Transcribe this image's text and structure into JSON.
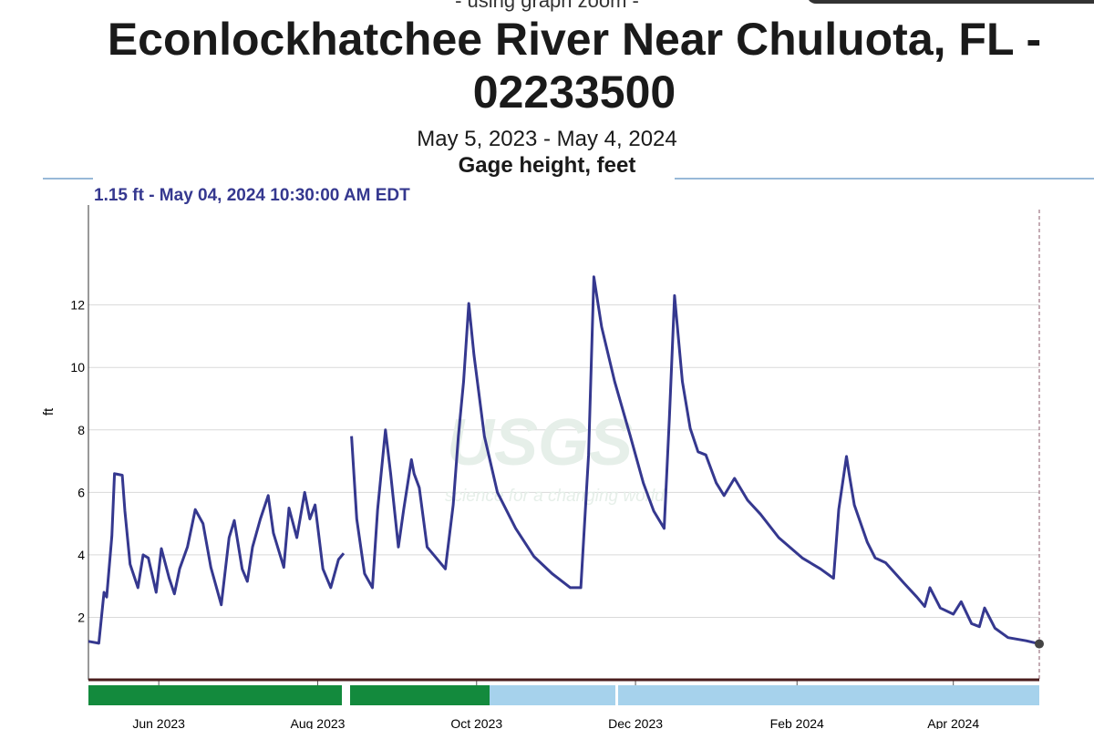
{
  "chart_data": {
    "type": "line",
    "note": "- using graph zoom -",
    "title": "Econlockhatchee River Near Chuluota, FL - 02233500",
    "subtitle": "May 5, 2023 - May 4, 2024",
    "parameter": "Gage height, feet",
    "readout": "1.15 ft - May 04, 2024 10:30:00 AM EDT",
    "ylabel": "ft",
    "watermark": "USGS",
    "watermark_tagline": "science for a changing world",
    "color": "#35388f",
    "grid": true,
    "xlim": [
      "2023-05-05",
      "2024-05-04"
    ],
    "xticks": [
      {
        "value": "2023-06-01",
        "label": "Jun 2023"
      },
      {
        "value": "2023-08-01",
        "label": "Aug 2023"
      },
      {
        "value": "2023-10-01",
        "label": "Oct 2023"
      },
      {
        "value": "2023-12-01",
        "label": "Dec 2023"
      },
      {
        "value": "2024-02-01",
        "label": "Feb 2024"
      },
      {
        "value": "2024-04-01",
        "label": "Apr 2024"
      }
    ],
    "ylim": [
      0,
      15.2
    ],
    "yticks": [
      2,
      4,
      6,
      8,
      10,
      12
    ],
    "x": [
      "2023-05-05",
      "2023-05-09",
      "2023-05-11",
      "2023-05-12",
      "2023-05-14",
      "2023-05-15",
      "2023-05-18",
      "2023-05-19",
      "2023-05-21",
      "2023-05-24",
      "2023-05-26",
      "2023-05-28",
      "2023-05-31",
      "2023-06-02",
      "2023-06-05",
      "2023-06-07",
      "2023-06-09",
      "2023-06-12",
      "2023-06-15",
      "2023-06-18",
      "2023-06-21",
      "2023-06-25",
      "2023-06-28",
      "2023-06-30",
      "2023-07-03",
      "2023-07-05",
      "2023-07-07",
      "2023-07-10",
      "2023-07-13",
      "2023-07-15",
      "2023-07-19",
      "2023-07-21",
      "2023-07-24",
      "2023-07-27",
      "2023-07-29",
      "2023-07-31",
      "2023-08-03",
      "2023-08-06",
      "2023-08-09",
      "2023-08-11",
      "2023-08-13",
      "2023-08-14",
      "2023-08-16",
      "2023-08-19",
      "2023-08-22",
      "2023-08-24",
      "2023-08-27",
      "2023-08-29",
      "2023-09-01",
      "2023-09-03",
      "2023-09-06",
      "2023-09-07",
      "2023-09-09",
      "2023-09-12",
      "2023-09-15",
      "2023-09-19",
      "2023-09-22",
      "2023-09-24",
      "2023-09-26",
      "2023-09-28",
      "2023-09-30",
      "2023-10-04",
      "2023-10-09",
      "2023-10-16",
      "2023-10-23",
      "2023-10-30",
      "2023-11-06",
      "2023-11-10",
      "2023-11-13",
      "2023-11-15",
      "2023-11-18",
      "2023-11-23",
      "2023-11-29",
      "2023-12-04",
      "2023-12-08",
      "2023-12-12",
      "2023-12-14",
      "2023-12-16",
      "2023-12-19",
      "2023-12-22",
      "2023-12-25",
      "2023-12-28",
      "2024-01-01",
      "2024-01-04",
      "2024-01-08",
      "2024-01-13",
      "2024-01-18",
      "2024-01-25",
      "2024-02-03",
      "2024-02-10",
      "2024-02-15",
      "2024-02-17",
      "2024-02-20",
      "2024-02-21",
      "2024-02-23",
      "2024-02-28",
      "2024-03-02",
      "2024-03-06",
      "2024-03-13",
      "2024-03-18",
      "2024-03-21",
      "2024-03-23",
      "2024-03-27",
      "2024-04-01",
      "2024-04-04",
      "2024-04-08",
      "2024-04-11",
      "2024-04-13",
      "2024-04-17",
      "2024-04-22",
      "2024-04-29",
      "2024-05-04"
    ],
    "values": [
      1.23,
      1.17,
      2.8,
      2.65,
      4.6,
      6.6,
      6.55,
      5.4,
      3.7,
      2.95,
      4.0,
      3.9,
      2.8,
      4.2,
      3.25,
      2.75,
      3.55,
      4.25,
      5.45,
      5.0,
      3.6,
      2.4,
      4.55,
      5.1,
      3.55,
      3.15,
      4.25,
      5.15,
      5.9,
      4.7,
      3.6,
      5.5,
      4.55,
      6.0,
      5.15,
      5.6,
      3.55,
      2.95,
      3.85,
      4.05,
      null,
      7.8,
      5.15,
      3.4,
      2.95,
      5.45,
      8.0,
      6.6,
      4.25,
      5.45,
      7.05,
      6.6,
      6.15,
      4.25,
      3.95,
      3.55,
      5.6,
      7.8,
      9.55,
      12.05,
      10.4,
      7.8,
      6.0,
      4.85,
      3.95,
      3.4,
      2.95,
      2.95,
      7.2,
      12.9,
      11.3,
      9.55,
      7.8,
      6.3,
      5.4,
      4.85,
      8.35,
      12.3,
      9.55,
      8.05,
      7.3,
      7.2,
      6.3,
      5.9,
      6.45,
      5.75,
      5.3,
      4.55,
      3.9,
      3.55,
      3.25,
      5.45,
      7.15,
      6.6,
      5.6,
      4.4,
      3.9,
      3.75,
      3.1,
      2.65,
      2.35,
      2.95,
      2.3,
      2.1,
      2.5,
      1.8,
      1.7,
      2.3,
      1.65,
      1.35,
      1.25,
      1.15
    ]
  }
}
